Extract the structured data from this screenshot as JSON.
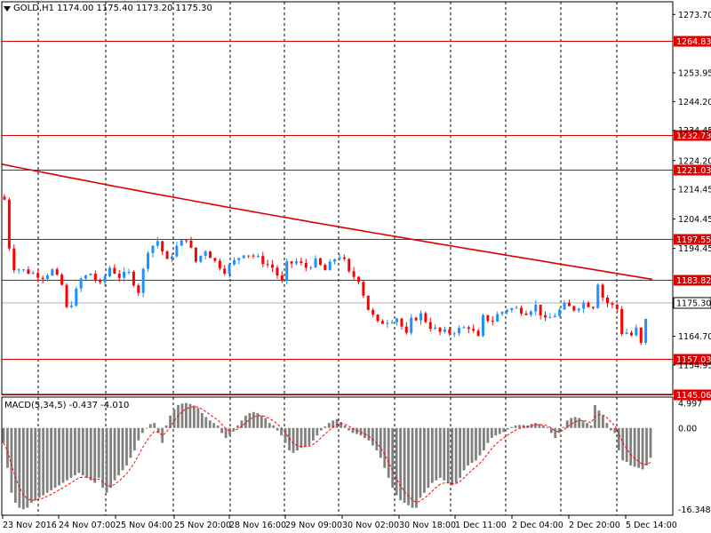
{
  "header": {
    "symbol": "GOLD,H1",
    "ohlc": "1174.00 1175.40 1173.20 1175.30"
  },
  "macd": {
    "label": "MACD(5,34,5) -0.437 -4.010",
    "axis_labels": [
      "4.997",
      "0.00",
      "-16.348"
    ]
  },
  "price_axis": {
    "labels": [
      "1273.70",
      "1253.95",
      "1244.20",
      "1234.45",
      "1224.20",
      "1214.45",
      "1204.45",
      "1194.45",
      "1164.70",
      "1154.95"
    ]
  },
  "time_axis": {
    "labels": [
      "23 Nov 2016",
      "24 Nov 07:00",
      "25 Nov 04:00",
      "25 Nov 20:00",
      "28 Nov 16:00",
      "29 Nov 09:00",
      "30 Nov 02:00",
      "30 Nov 18:00",
      "1 Dec 11:00",
      "2 Dec 04:00",
      "2 Dec 20:00",
      "5 Dec 14:00"
    ]
  },
  "levels": [
    {
      "value": "1264.83"
    },
    {
      "value": "1232.73"
    },
    {
      "value": "1221.03"
    },
    {
      "value": "1197.55"
    },
    {
      "value": "1183.82"
    },
    {
      "value": "1157.03"
    },
    {
      "value": "1145.06"
    }
  ],
  "current_price": "1175.30",
  "colors": {
    "bull": "#1e90ff",
    "bear": "#ff0000",
    "level_line": "#e00000",
    "ma_line": "#dd0000",
    "macd_hist": "#808080",
    "macd_signal": "#ff0000",
    "grid": "#000000",
    "price_tag": "#ffffff"
  },
  "chart_data": {
    "type": "candlestick",
    "symbol": "GOLD",
    "timeframe": "H1",
    "price_range": [
      1145,
      1278
    ],
    "macd_range": [
      -17.5,
      6.2
    ],
    "hlines": [
      1264.83,
      1232.73,
      1221.03,
      1197.55,
      1183.82,
      1157.03,
      1145.06
    ],
    "current_price": 1175.3,
    "ma_start": 1223.0,
    "ma_end": 1184.0,
    "close_path": [
      [
        0,
        1211
      ],
      [
        2,
        1195
      ],
      [
        4,
        1188
      ],
      [
        8,
        1187
      ],
      [
        12,
        1186
      ],
      [
        16,
        1185
      ],
      [
        20,
        1187
      ],
      [
        24,
        1182
      ],
      [
        26,
        1174
      ],
      [
        28,
        1176
      ],
      [
        32,
        1184
      ],
      [
        36,
        1186
      ],
      [
        40,
        1182
      ],
      [
        44,
        1188
      ],
      [
        48,
        1185
      ],
      [
        52,
        1186
      ],
      [
        56,
        1180
      ],
      [
        60,
        1194
      ],
      [
        64,
        1197
      ],
      [
        68,
        1190
      ],
      [
        72,
        1195
      ],
      [
        76,
        1198
      ],
      [
        80,
        1190
      ],
      [
        84,
        1194
      ],
      [
        88,
        1190
      ],
      [
        92,
        1187
      ],
      [
        96,
        1190
      ],
      [
        100,
        1193
      ],
      [
        104,
        1192
      ],
      [
        108,
        1190
      ],
      [
        112,
        1188
      ],
      [
        116,
        1183
      ],
      [
        118,
        1189
      ],
      [
        122,
        1190
      ],
      [
        126,
        1188
      ],
      [
        130,
        1190
      ],
      [
        134,
        1187
      ],
      [
        138,
        1191
      ],
      [
        140,
        1192
      ],
      [
        142,
        1190
      ],
      [
        144,
        1186
      ],
      [
        148,
        1184
      ],
      [
        152,
        1174
      ],
      [
        156,
        1169
      ],
      [
        160,
        1170
      ],
      [
        164,
        1171
      ],
      [
        168,
        1165
      ],
      [
        170,
        1170
      ],
      [
        174,
        1172
      ],
      [
        178,
        1168
      ],
      [
        182,
        1166
      ],
      [
        186,
        1166
      ],
      [
        190,
        1167
      ],
      [
        194,
        1168
      ],
      [
        198,
        1164
      ],
      [
        200,
        1171
      ],
      [
        204,
        1170
      ],
      [
        206,
        1172
      ],
      [
        210,
        1174
      ],
      [
        214,
        1174
      ],
      [
        218,
        1173
      ],
      [
        222,
        1175
      ],
      [
        226,
        1170
      ],
      [
        230,
        1172
      ],
      [
        234,
        1175
      ],
      [
        238,
        1174
      ],
      [
        242,
        1176
      ],
      [
        246,
        1175
      ],
      [
        248,
        1183
      ],
      [
        250,
        1178
      ],
      [
        252,
        1176
      ],
      [
        256,
        1174
      ],
      [
        258,
        1166
      ],
      [
        260,
        1166
      ],
      [
        262,
        1165
      ],
      [
        264,
        1167
      ],
      [
        266,
        1162
      ],
      [
        268,
        1170
      ],
      [
        270,
        1175
      ]
    ],
    "macd_hist": [
      -3.0,
      -8.0,
      -13.0,
      -15.0,
      -16.0,
      -16.3,
      -16.0,
      -15.0,
      -14.5,
      -14.0,
      -13.5,
      -13.0,
      -12.5,
      -12.0,
      -11.5,
      -11.0,
      -10.5,
      -10.0,
      -9.5,
      -9.0,
      -9.5,
      -10.0,
      -10.5,
      -11.0,
      -10.0,
      -12.0,
      -13.0,
      -12.0,
      -10.5,
      -9.5,
      -8.5,
      -7.5,
      -6.0,
      -4.5,
      -2.5,
      -1.0,
      0.0,
      0.8,
      1.0,
      -1.0,
      -3.0,
      0.5,
      2.5,
      3.8,
      4.6,
      4.9,
      5.0,
      4.8,
      4.5,
      4.0,
      3.0,
      2.2,
      1.5,
      1.0,
      0.5,
      -1.0,
      -2.0,
      -1.5,
      -0.5,
      0.5,
      1.5,
      2.5,
      3.0,
      3.2,
      3.0,
      2.5,
      2.0,
      1.0,
      0.5,
      -0.5,
      -1.5,
      -3.0,
      -4.5,
      -5.0,
      -4.5,
      -4.0,
      -3.8,
      -3.5,
      -2.5,
      -1.5,
      -0.5,
      0.3,
      1.0,
      1.5,
      1.8,
      1.2,
      0.5,
      -0.5,
      -1.0,
      -1.2,
      -1.5,
      -2.0,
      -2.5,
      -3.5,
      -4.5,
      -6.0,
      -8.0,
      -10.0,
      -12.0,
      -13.5,
      -14.5,
      -15.0,
      -15.5,
      -16.0,
      -16.0,
      -14.0,
      -13.0,
      -12.0,
      -11.0,
      -10.5,
      -10.0,
      -10.5,
      -11.0,
      -11.5,
      -11.0,
      -10.0,
      -8.5,
      -7.5,
      -7.0,
      -6.5,
      -5.5,
      -4.5,
      -3.0,
      -2.0,
      -1.5,
      -1.2,
      -0.8,
      -0.3,
      0.2,
      0.5,
      0.6,
      0.6,
      0.5,
      0.8,
      1.0,
      0.8,
      0.5,
      0.2,
      -1.0,
      -2.0,
      -1.0,
      0.2,
      1.5,
      2.0,
      2.2,
      2.0,
      1.5,
      1.0,
      0.5,
      4.6,
      3.5,
      2.5,
      1.0,
      -0.5,
      -1.0,
      -4.5,
      -6.5,
      -6.8,
      -7.5,
      -7.8,
      -8.0,
      -8.3,
      -7.5,
      -6.0
    ],
    "xlabel": "",
    "ylabel": ""
  }
}
